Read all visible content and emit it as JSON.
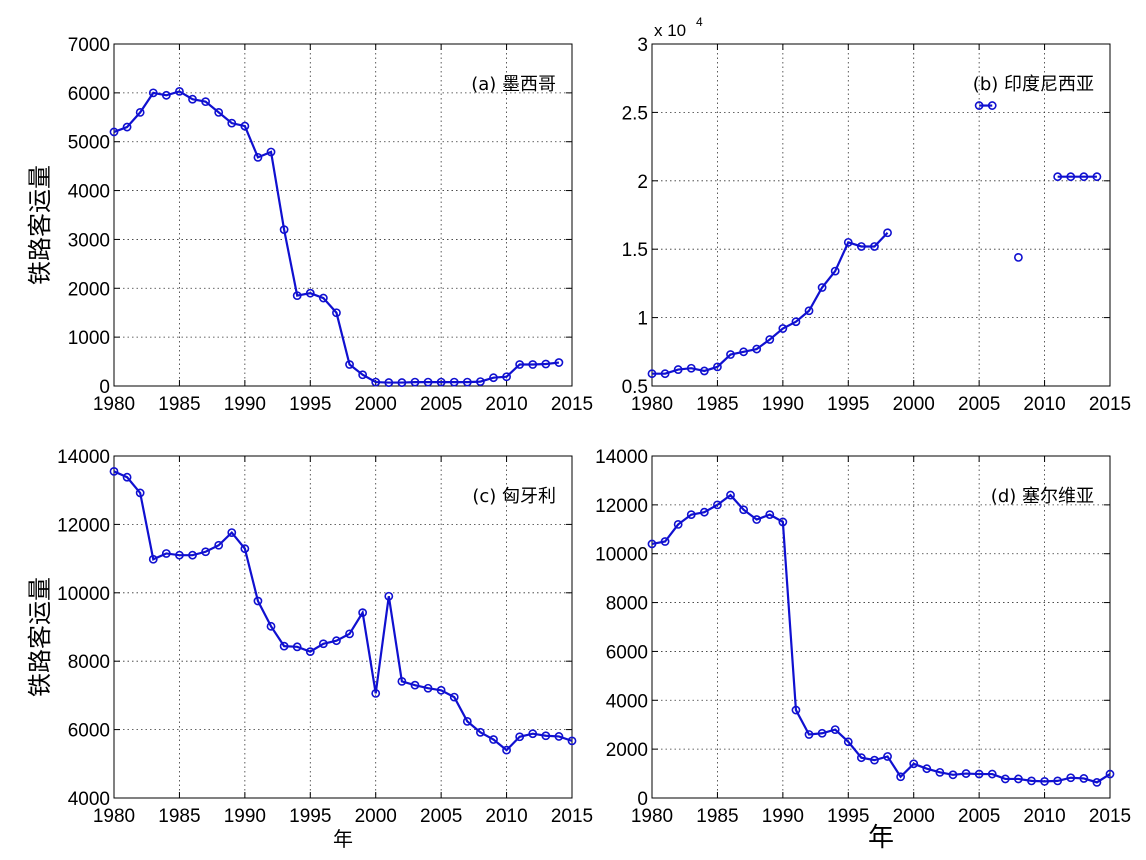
{
  "line_color": "#1010d0",
  "chart_data": [
    {
      "type": "line",
      "label": "(a) 墨西哥",
      "ylabel": "铁路客运量",
      "xlabel": "",
      "xlim": [
        1980,
        2015
      ],
      "ylim": [
        0,
        7000
      ],
      "x_ticks": [
        1980,
        1985,
        1990,
        1995,
        2000,
        2005,
        2010,
        2015
      ],
      "y_ticks": [
        0,
        1000,
        2000,
        3000,
        4000,
        5000,
        6000,
        7000
      ],
      "y_multiplier": "",
      "y_multiplier_exp": "",
      "grid": true,
      "markers": "circle",
      "series": [
        {
          "x": [
            1980,
            1981,
            1982,
            1983,
            1984,
            1985,
            1986,
            1987,
            1988,
            1989,
            1990,
            1991,
            1992,
            1993,
            1994,
            1995,
            1996,
            1997,
            1998,
            1999,
            2000,
            2001,
            2002,
            2003,
            2004,
            2005,
            2006,
            2007,
            2008,
            2009,
            2010,
            2011,
            2012,
            2013,
            2014
          ],
          "y": [
            5200,
            5300,
            5600,
            6000,
            5950,
            6030,
            5870,
            5820,
            5600,
            5380,
            5320,
            4680,
            4790,
            3200,
            1850,
            1900,
            1800,
            1500,
            440,
            230,
            80,
            70,
            70,
            80,
            80,
            80,
            80,
            80,
            90,
            170,
            190,
            440,
            440,
            450,
            480
          ]
        }
      ]
    },
    {
      "type": "line",
      "label": "(b) 印度尼西亚",
      "ylabel": "",
      "xlabel": "",
      "xlim": [
        1980,
        2015
      ],
      "ylim": [
        0.5,
        3
      ],
      "x_ticks": [
        1980,
        1985,
        1990,
        1995,
        2000,
        2005,
        2010,
        2015
      ],
      "y_ticks": [
        0.5,
        1,
        1.5,
        2,
        2.5,
        3
      ],
      "y_multiplier": "x 10",
      "y_multiplier_exp": "4",
      "grid": true,
      "markers": "circle",
      "series": [
        {
          "x": [
            1980,
            1981,
            1982,
            1983,
            1984,
            1985,
            1986,
            1987,
            1988,
            1989,
            1990,
            1991,
            1992,
            1993,
            1994,
            1995,
            1996,
            1997,
            1998,
            null,
            2005,
            2006,
            null,
            2008,
            null,
            2011,
            2012,
            2013,
            2014
          ],
          "y": [
            0.59,
            0.59,
            0.62,
            0.63,
            0.61,
            0.64,
            0.73,
            0.75,
            0.77,
            0.84,
            0.92,
            0.97,
            1.05,
            1.22,
            1.34,
            1.55,
            1.52,
            1.52,
            1.62,
            null,
            2.55,
            2.55,
            null,
            1.44,
            null,
            2.03,
            2.03,
            2.03,
            2.03
          ]
        }
      ]
    },
    {
      "type": "line",
      "label": "(c) 匈牙利",
      "ylabel": "铁路客运量",
      "xlabel": "年",
      "xlim": [
        1980,
        2015
      ],
      "ylim": [
        4000,
        14000
      ],
      "x_ticks": [
        1980,
        1985,
        1990,
        1995,
        2000,
        2005,
        2010,
        2015
      ],
      "y_ticks": [
        4000,
        6000,
        8000,
        10000,
        12000,
        14000
      ],
      "y_multiplier": "",
      "y_multiplier_exp": "",
      "grid": true,
      "markers": "circle",
      "series": [
        {
          "x": [
            1980,
            1981,
            1982,
            1983,
            1984,
            1985,
            1986,
            1987,
            1988,
            1989,
            1990,
            1991,
            1992,
            1993,
            1994,
            1995,
            1996,
            1997,
            1998,
            1999,
            2000,
            2001,
            2002,
            2003,
            2004,
            2005,
            2006,
            2007,
            2008,
            2009,
            2010,
            2011,
            2012,
            2013,
            2014,
            2015
          ],
          "y": [
            13550,
            13380,
            12920,
            10980,
            11150,
            11100,
            11100,
            11200,
            11390,
            11760,
            11290,
            9760,
            9020,
            8440,
            8420,
            8280,
            8510,
            8600,
            8800,
            9420,
            7060,
            9900,
            7410,
            7300,
            7210,
            7150,
            6950,
            6240,
            5920,
            5710,
            5400,
            5790,
            5880,
            5820,
            5800,
            5670
          ]
        }
      ]
    },
    {
      "type": "line",
      "label": "(d) 塞尔维亚",
      "ylabel": "",
      "xlabel": "年",
      "xlim": [
        1980,
        2015
      ],
      "ylim": [
        0,
        14000
      ],
      "x_ticks": [
        1980,
        1985,
        1990,
        1995,
        2000,
        2005,
        2010,
        2015
      ],
      "y_ticks": [
        0,
        2000,
        4000,
        6000,
        8000,
        10000,
        12000,
        14000
      ],
      "y_multiplier": "",
      "y_multiplier_exp": "",
      "grid": true,
      "markers": "circle",
      "series": [
        {
          "x": [
            1980,
            1981,
            1982,
            1983,
            1984,
            1985,
            1986,
            1987,
            1988,
            1989,
            1990,
            1991,
            1992,
            1993,
            1994,
            1995,
            1996,
            1997,
            1998,
            1999,
            2000,
            2001,
            2002,
            2003,
            2004,
            2005,
            2006,
            2007,
            2008,
            2009,
            2010,
            2011,
            2012,
            2013,
            2014,
            2015
          ],
          "y": [
            10400,
            10500,
            11200,
            11600,
            11700,
            12000,
            12400,
            11800,
            11400,
            11600,
            11300,
            3600,
            2600,
            2650,
            2800,
            2300,
            1650,
            1550,
            1700,
            870,
            1400,
            1200,
            1050,
            950,
            1000,
            980,
            980,
            780,
            780,
            700,
            680,
            700,
            830,
            800,
            640,
            980
          ]
        }
      ]
    }
  ]
}
